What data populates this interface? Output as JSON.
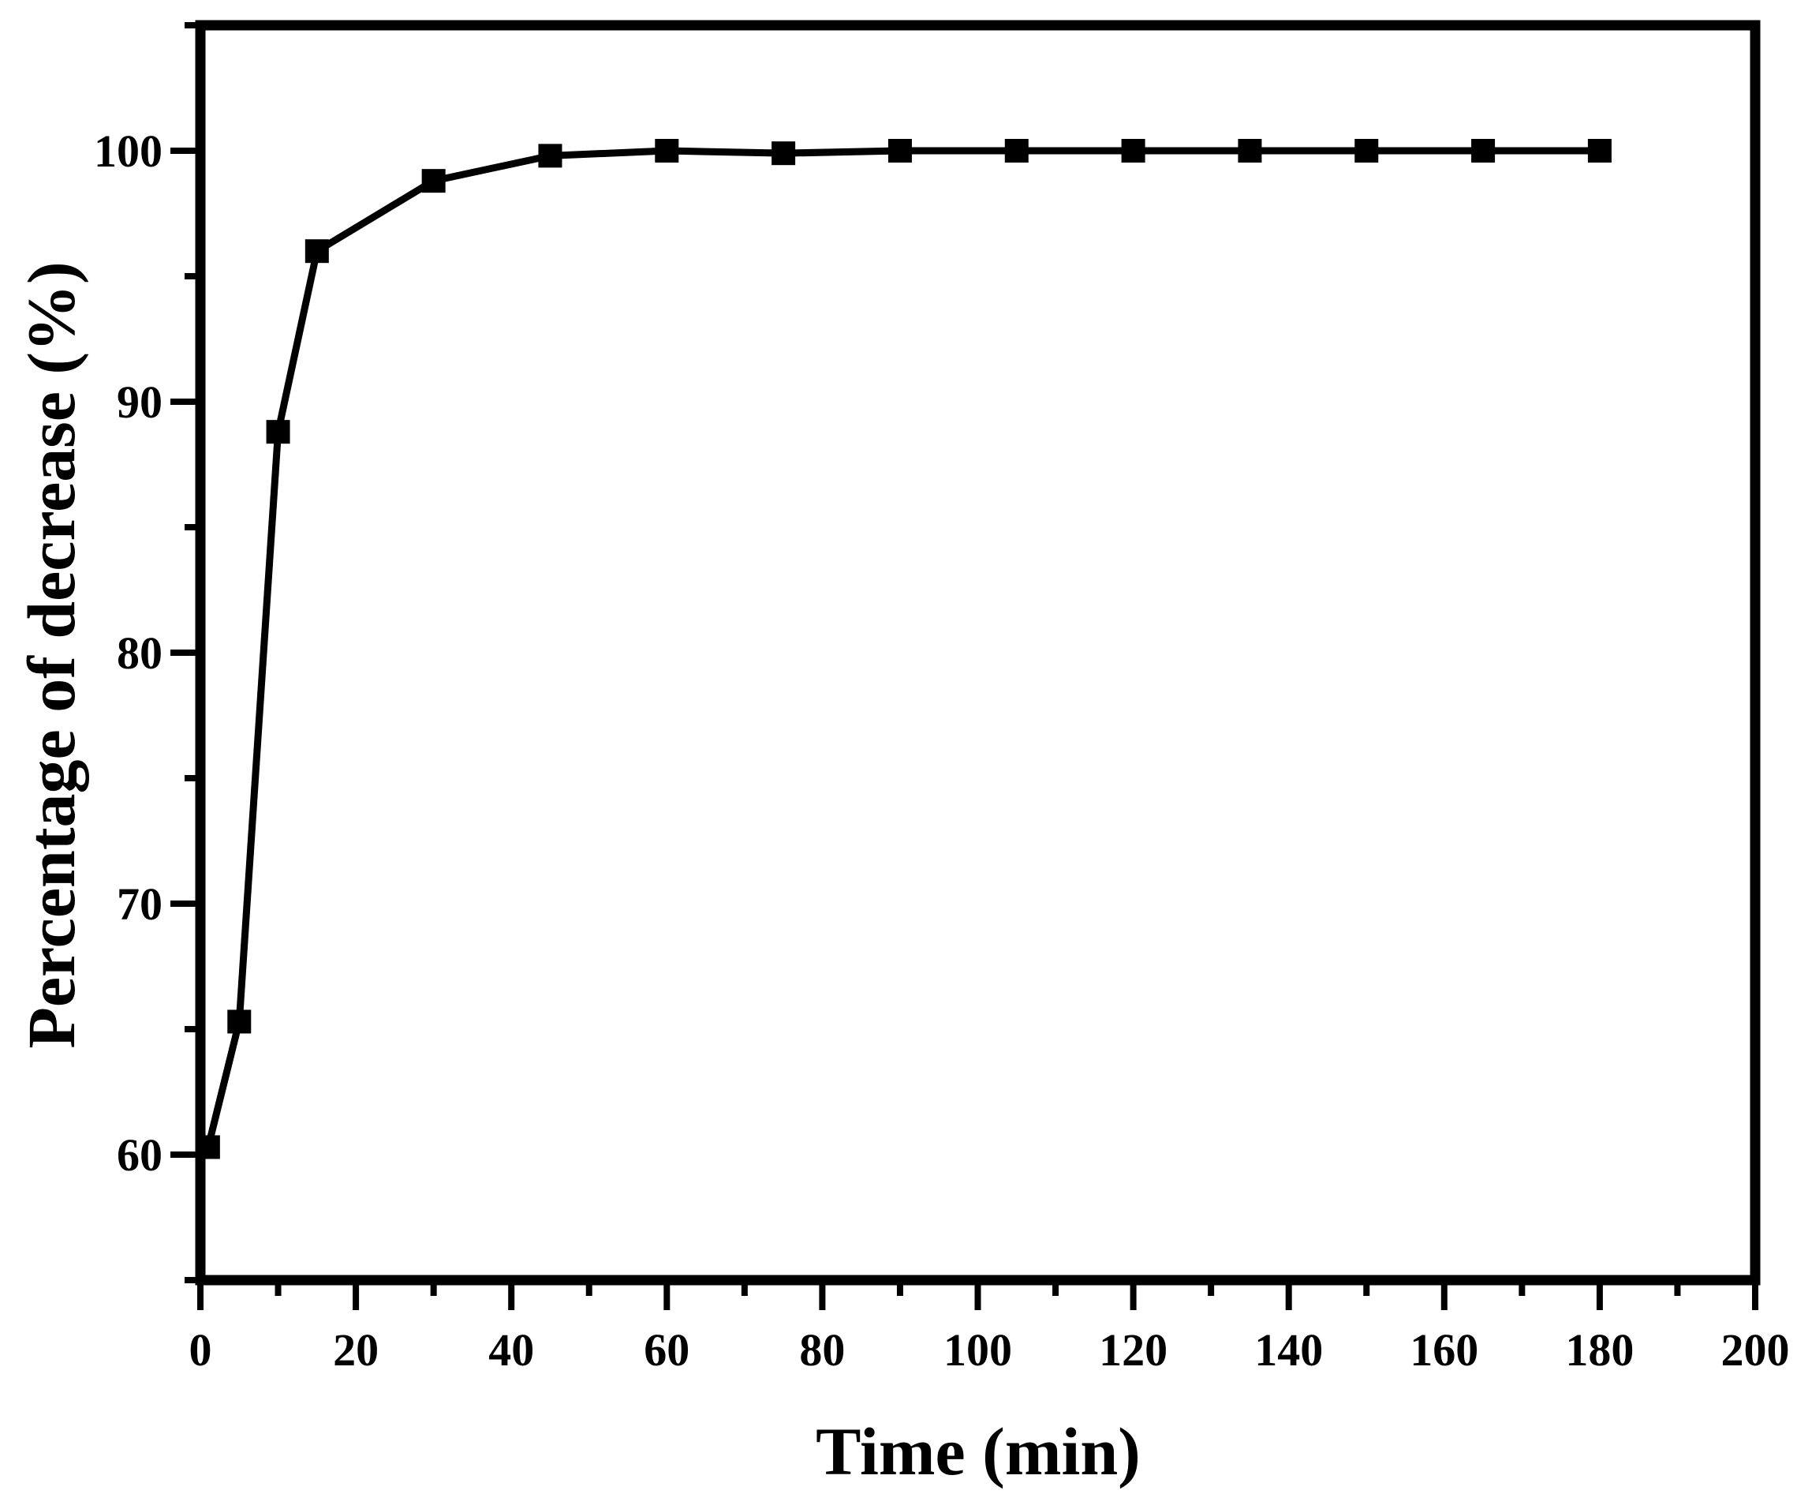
{
  "chart_data": {
    "type": "line",
    "title": "",
    "xlabel": "Time (min)",
    "ylabel": "Percentage of decrease (%)",
    "xlim": [
      0,
      200
    ],
    "ylim": [
      55,
      105
    ],
    "x_ticks": [
      0,
      20,
      40,
      60,
      80,
      100,
      120,
      140,
      160,
      180,
      200
    ],
    "x_tick_labels": [
      "0",
      "20",
      "40",
      "60",
      "80",
      "100",
      "120",
      "140",
      "160",
      "180",
      "200"
    ],
    "y_ticks": [
      60,
      70,
      80,
      90,
      100
    ],
    "y_tick_labels": [
      "60",
      "70",
      "80",
      "90",
      "100"
    ],
    "grid": false,
    "legend": "none",
    "marker": "square",
    "series": [
      {
        "color": "#000000",
        "x": [
          1,
          5,
          10,
          15,
          30,
          45,
          60,
          75,
          90,
          105,
          120,
          135,
          150,
          165,
          180
        ],
        "y": [
          60.3,
          65.3,
          88.8,
          96.0,
          98.8,
          99.8,
          100.0,
          99.9,
          100.0,
          100.0,
          100.0,
          100.0,
          100.0,
          100.0,
          100.0
        ]
      }
    ]
  }
}
